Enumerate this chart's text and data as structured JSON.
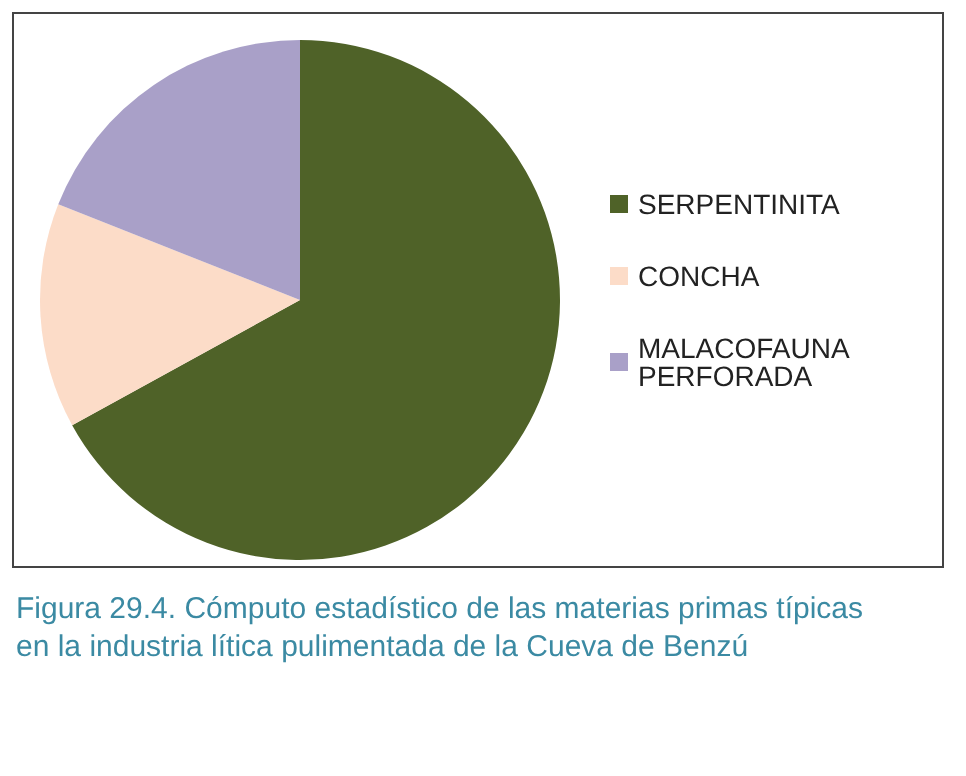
{
  "chart_data": {
    "type": "pie",
    "categories": [
      "SERPENTINITA",
      "CONCHA",
      "MALACOFAUNA PERFORADA"
    ],
    "values": [
      67,
      14,
      19
    ],
    "colors": [
      "#4f6228",
      "#fcdcc8",
      "#a9a0c8"
    ],
    "legend": "right",
    "annotations": [
      "Figura 29.4. Cómputo estadístico de las materias primas típicas en la industria lítica pulimentada de la Cueva de Benzú"
    ]
  }
}
